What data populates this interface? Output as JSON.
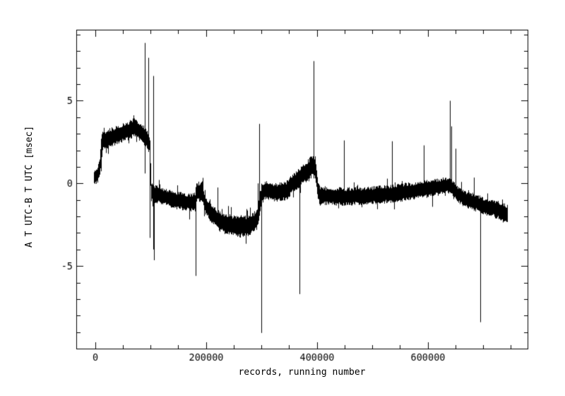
{
  "figure": {
    "background": "#ffffff",
    "ink": "#000000"
  },
  "chart_data": {
    "type": "line",
    "title": "",
    "xlabel": "records, running number",
    "ylabel": "A T UTC-B T UTC [msec]",
    "x_unit": "records",
    "y_unit": "msec",
    "xlim": [
      -34000,
      780000
    ],
    "ylim": [
      -10,
      9.3
    ],
    "grid": false,
    "legend": false,
    "ink": "#000000",
    "x_ticks": {
      "major": [
        0,
        200000,
        400000,
        600000
      ],
      "labels": [
        "0",
        "200000",
        "400000",
        "600000"
      ],
      "minor_step": 50000
    },
    "y_ticks": {
      "major": [
        -5,
        0,
        5
      ],
      "labels": [
        "-5",
        "0",
        "5"
      ],
      "minor_step": 1
    },
    "series": [
      {
        "name": "A T UTC - B T UTC",
        "style": "noisy-band",
        "band_anchors": [
          [
            -2000,
            0.35,
            0.35
          ],
          [
            3000,
            0.45,
            0.4
          ],
          [
            8000,
            1.0,
            0.6
          ],
          [
            10500,
            1.9,
            0.8
          ],
          [
            13000,
            2.55,
            0.5
          ],
          [
            30000,
            2.8,
            0.5
          ],
          [
            45000,
            3.0,
            0.5
          ],
          [
            60000,
            3.2,
            0.5
          ],
          [
            70000,
            3.4,
            0.5
          ],
          [
            80000,
            3.15,
            0.5
          ],
          [
            88000,
            2.9,
            0.5
          ],
          [
            95000,
            2.55,
            0.48
          ],
          [
            97800,
            2.4,
            0.45
          ],
          [
            99200,
            1.0,
            0.9
          ],
          [
            100800,
            -0.55,
            0.5
          ],
          [
            115000,
            -0.7,
            0.45
          ],
          [
            140000,
            -1.0,
            0.45
          ],
          [
            160000,
            -1.1,
            0.46
          ],
          [
            175000,
            -1.15,
            0.48
          ],
          [
            180200,
            -1.1,
            0.5
          ],
          [
            181600,
            -0.5,
            0.53
          ],
          [
            193500,
            -0.5,
            0.53
          ],
          [
            196500,
            -1.2,
            0.48
          ],
          [
            207000,
            -1.7,
            0.5
          ],
          [
            220000,
            -2.2,
            0.55
          ],
          [
            235000,
            -2.45,
            0.55
          ],
          [
            252000,
            -2.6,
            0.58
          ],
          [
            270000,
            -2.6,
            0.58
          ],
          [
            285000,
            -2.4,
            0.55
          ],
          [
            292000,
            -2.1,
            0.6
          ],
          [
            296500,
            -1.2,
            0.6
          ],
          [
            300000,
            -0.6,
            0.55
          ],
          [
            307000,
            -0.4,
            0.5
          ],
          [
            317000,
            -0.5,
            0.5
          ],
          [
            330000,
            -0.55,
            0.5
          ],
          [
            344000,
            -0.45,
            0.5
          ],
          [
            352000,
            -0.15,
            0.5
          ],
          [
            360000,
            0.1,
            0.5
          ],
          [
            372000,
            0.5,
            0.52
          ],
          [
            383000,
            0.8,
            0.55
          ],
          [
            392000,
            1.05,
            0.62
          ],
          [
            396800,
            1.0,
            0.62
          ],
          [
            399200,
            0.3,
            0.6
          ],
          [
            401500,
            -0.5,
            0.52
          ],
          [
            405000,
            -0.75,
            0.47
          ],
          [
            450000,
            -0.8,
            0.47
          ],
          [
            490000,
            -0.75,
            0.47
          ],
          [
            530000,
            -0.65,
            0.47
          ],
          [
            565000,
            -0.5,
            0.47
          ],
          [
            600000,
            -0.33,
            0.46
          ],
          [
            620000,
            -0.22,
            0.44
          ],
          [
            634000,
            -0.1,
            0.42
          ],
          [
            641000,
            -0.15,
            0.42
          ],
          [
            648000,
            -0.4,
            0.42
          ],
          [
            655000,
            -0.7,
            0.43
          ],
          [
            668000,
            -0.95,
            0.44
          ],
          [
            685000,
            -1.15,
            0.45
          ],
          [
            700000,
            -1.35,
            0.45
          ],
          [
            715000,
            -1.5,
            0.46
          ],
          [
            730000,
            -1.65,
            0.48
          ],
          [
            743000,
            -1.85,
            0.5
          ]
        ],
        "spikes": [
          [
            90100,
            0.6,
            8.5
          ],
          [
            95500,
            1.9,
            7.6
          ],
          [
            98100,
            -3.3,
            2.6
          ],
          [
            104900,
            -4.0,
            1.5
          ],
          [
            105400,
            -0.6,
            6.5
          ],
          [
            106400,
            -4.65,
            -0.4
          ],
          [
            181200,
            -5.6,
            -0.45
          ],
          [
            220500,
            -2.3,
            -0.25
          ],
          [
            293500,
            -2.2,
            0.0
          ],
          [
            296300,
            -1.5,
            3.6
          ],
          [
            299400,
            -9.05,
            -0.4
          ],
          [
            357000,
            -0.85,
            0.1
          ],
          [
            368200,
            -6.7,
            0.5
          ],
          [
            394200,
            0.3,
            7.4
          ],
          [
            448400,
            -0.8,
            2.6
          ],
          [
            535000,
            -0.55,
            2.55
          ],
          [
            592400,
            -0.35,
            2.3
          ],
          [
            640500,
            -0.15,
            5.0
          ],
          [
            642000,
            -0.2,
            3.45
          ],
          [
            650700,
            -0.35,
            2.1
          ],
          [
            683800,
            -1.1,
            0.35
          ],
          [
            694400,
            -8.4,
            -1.2
          ]
        ]
      }
    ]
  }
}
